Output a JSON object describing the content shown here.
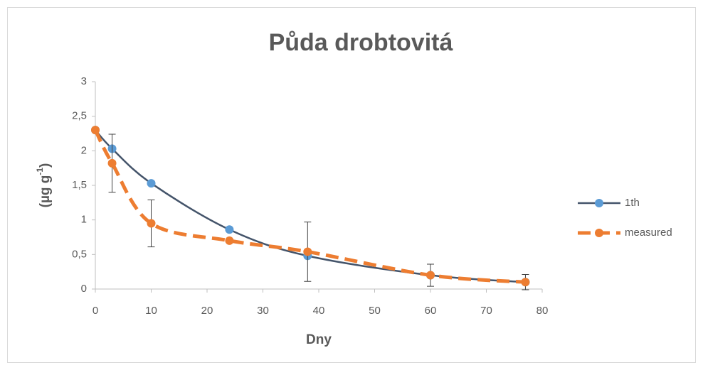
{
  "chart_data": {
    "type": "line",
    "title": "Půda drobtovitá",
    "xlabel": "Dny",
    "ylabel_parts": [
      "(µg g",
      "-1",
      ")"
    ],
    "x": [
      0,
      3,
      10,
      24,
      38,
      60,
      77
    ],
    "series": [
      {
        "name": "1th",
        "color": "#44546a",
        "marker_color": "#5b9bd5",
        "dashed": false,
        "values": [
          2.3,
          2.03,
          1.53,
          0.86,
          0.48,
          0.2,
          0.1
        ]
      },
      {
        "name": "measured",
        "color": "#ed7d31",
        "marker_color": "#ed7d31",
        "dashed": true,
        "values": [
          2.3,
          1.82,
          0.95,
          0.7,
          0.54,
          0.2,
          0.1
        ],
        "errors": [
          null,
          0.42,
          0.34,
          null,
          0.43,
          0.16,
          0.11
        ]
      }
    ],
    "xlim": [
      0,
      80
    ],
    "xticks": [
      0,
      10,
      20,
      30,
      40,
      50,
      60,
      70,
      80
    ],
    "ylim": [
      0,
      3
    ],
    "yticks": [
      0,
      {
        "value": 0.5,
        "label": "0,5"
      },
      1,
      {
        "value": 1.5,
        "label": "1,5"
      },
      2,
      {
        "value": 2.5,
        "label": "2,5"
      },
      3
    ],
    "grid": false,
    "legend": "right"
  }
}
